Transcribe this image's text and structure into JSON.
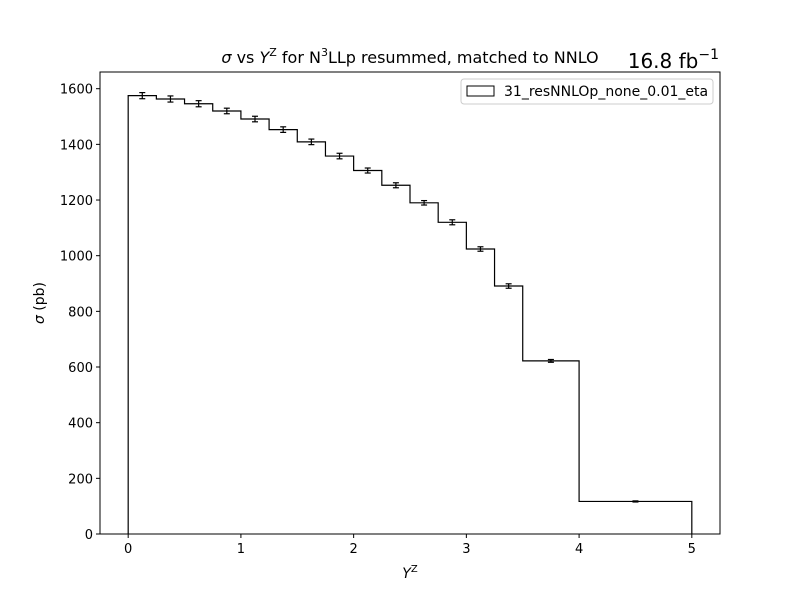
{
  "chart_data": {
    "type": "histogram",
    "title": {
      "sigma_symbol": "σ",
      "vs": " vs ",
      "y_symbol": "Y",
      "z_sup": "Z",
      "for_text": " for N",
      "n3_sup": "3",
      "rest": "LLp resummed, matched to NNLO"
    },
    "luminosity": {
      "value": "16.8 fb",
      "exponent": "−1"
    },
    "xlabel": {
      "symbol": "Y",
      "sup": "Z"
    },
    "ylabel": {
      "symbol": "σ",
      "unit": " (pb)"
    },
    "xlim": [
      -0.25,
      5.25
    ],
    "ylim": [
      0,
      1660
    ],
    "xticks": [
      0,
      1,
      2,
      3,
      4,
      5
    ],
    "yticks": [
      0,
      200,
      400,
      600,
      800,
      1000,
      1200,
      1400,
      1600
    ],
    "legend": {
      "label": "31_resNNLOp_none_0.01_eta",
      "position": "top-right"
    },
    "color": "#000000",
    "bin_edges": [
      0,
      0.25,
      0.5,
      0.75,
      1.0,
      1.25,
      1.5,
      1.75,
      2.0,
      2.25,
      2.5,
      2.75,
      3.0,
      3.25,
      3.5,
      4.0,
      5.0
    ],
    "values": [
      1575,
      1563,
      1546,
      1520,
      1491,
      1453,
      1409,
      1358,
      1306,
      1253,
      1190,
      1120,
      1024,
      891,
      622,
      117
    ],
    "errors": [
      11,
      11,
      11,
      10,
      10,
      10,
      10,
      10,
      9,
      9,
      8,
      9,
      8,
      8,
      5,
      2
    ]
  }
}
